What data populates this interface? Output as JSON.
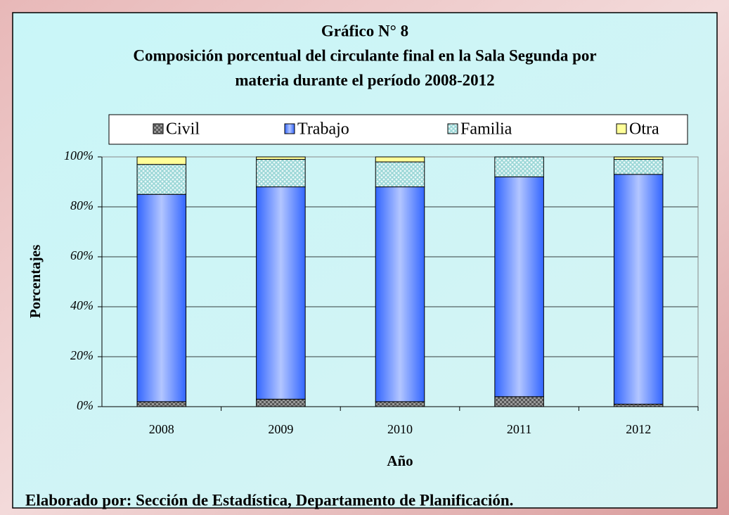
{
  "chart_data": {
    "type": "stacked_bar",
    "title": "Gráfico N° 8",
    "subtitle": [
      "Composición porcentual del circulante final en la Sala Segunda por",
      "materia durante el período 2008-2012"
    ],
    "x_label": "Año",
    "y_label": "Porcentajes",
    "categories": [
      "2008",
      "2009",
      "2010",
      "2011",
      "2012"
    ],
    "series": [
      {
        "name": "Civil",
        "color": "#555555",
        "values": [
          2,
          3,
          2,
          4,
          1
        ]
      },
      {
        "name": "Trabajo",
        "color": "#3366ff",
        "values": [
          83,
          85,
          86,
          88,
          92
        ]
      },
      {
        "name": "Familia",
        "color": "#99d6d6",
        "values": [
          12,
          11,
          10,
          8,
          6
        ]
      },
      {
        "name": "Otra",
        "color": "#ffff99",
        "values": [
          3,
          1,
          2,
          0,
          1
        ]
      }
    ],
    "ylim": [
      0,
      100
    ],
    "yticks": [
      {
        "value": 0,
        "label": "0%"
      },
      {
        "value": 20,
        "label": "20%"
      },
      {
        "value": 40,
        "label": "40%"
      },
      {
        "value": 60,
        "label": "60%"
      },
      {
        "value": 80,
        "label": "80%"
      },
      {
        "value": 100,
        "label": "100%"
      }
    ],
    "grid": true,
    "legend": "top",
    "source": "Elaborado por: Sección de Estadística, Departamento de Planificación."
  }
}
